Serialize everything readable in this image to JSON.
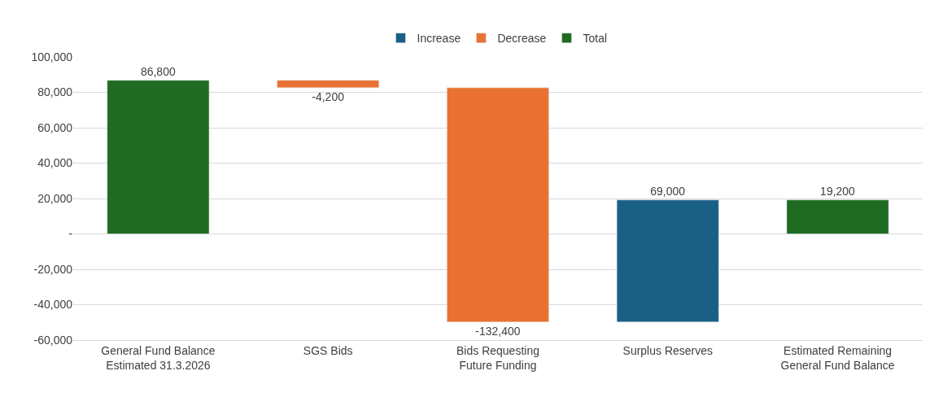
{
  "chart_data": {
    "type": "bar",
    "categories": [
      "General Fund Balance\nEstimated 31.3.2026",
      "SGS Bids",
      "Bids Requesting\nFuture Funding",
      "Surplus Reserves",
      "Estimated Remaining\nGeneral Fund Balance"
    ],
    "series": [
      {
        "name": "Increase",
        "color": "#1a5f84",
        "values": [
          null,
          null,
          null,
          69000,
          null
        ],
        "base": [
          null,
          null,
          null,
          -49800,
          null
        ],
        "value_labels": [
          null,
          null,
          null,
          "69,000",
          null
        ]
      },
      {
        "name": "Decrease",
        "color": "#e97132",
        "values": [
          null,
          -4200,
          -132400,
          null,
          null
        ],
        "base": [
          null,
          86800,
          82600,
          null,
          null
        ],
        "value_labels": [
          null,
          "-4,200",
          "-132,400",
          null,
          null
        ]
      },
      {
        "name": "Total",
        "color": "#1f6b22",
        "values": [
          86800,
          null,
          null,
          null,
          19200
        ],
        "base": [
          0,
          null,
          null,
          null,
          0
        ],
        "value_labels": [
          "86,800",
          null,
          null,
          null,
          "19,200"
        ]
      }
    ],
    "ylim": [
      -60000,
      100000
    ],
    "yticks": [
      {
        "value": -60000,
        "label": "-60,000"
      },
      {
        "value": -40000,
        "label": "-40,000"
      },
      {
        "value": -20000,
        "label": "-20,000"
      },
      {
        "value": 0,
        "label": "-"
      },
      {
        "value": 20000,
        "label": "20,000"
      },
      {
        "value": 40000,
        "label": "40,000"
      },
      {
        "value": 60000,
        "label": "60,000"
      },
      {
        "value": 80000,
        "label": "80,000"
      },
      {
        "value": 100000,
        "label": "100,000"
      }
    ],
    "grid": "y",
    "legend": "top"
  }
}
